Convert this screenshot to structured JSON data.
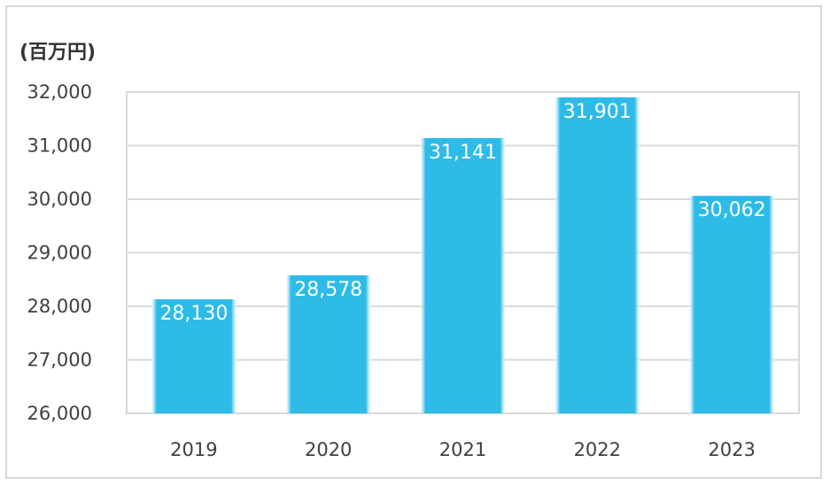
{
  "chart_data": {
    "type": "bar",
    "unit_label": "(百万円)",
    "categories": [
      "2019",
      "2020",
      "2021",
      "2022",
      "2023"
    ],
    "values": [
      28130,
      28578,
      31141,
      31901,
      30062
    ],
    "data_labels": [
      "28,130",
      "28,578",
      "31,141",
      "31,901",
      "30,062"
    ],
    "yticks": [
      26000,
      27000,
      28000,
      29000,
      30000,
      31000,
      32000
    ],
    "ytick_labels": [
      "26,000",
      "27,000",
      "28,000",
      "29,000",
      "30,000",
      "31,000",
      "32,000"
    ],
    "ylim": [
      26000,
      32000
    ],
    "grid": true,
    "legend": "none",
    "colors": {
      "bar": "#2ebbe8",
      "grid": "#d9d9d9",
      "frame": "#d9d9d9"
    }
  }
}
